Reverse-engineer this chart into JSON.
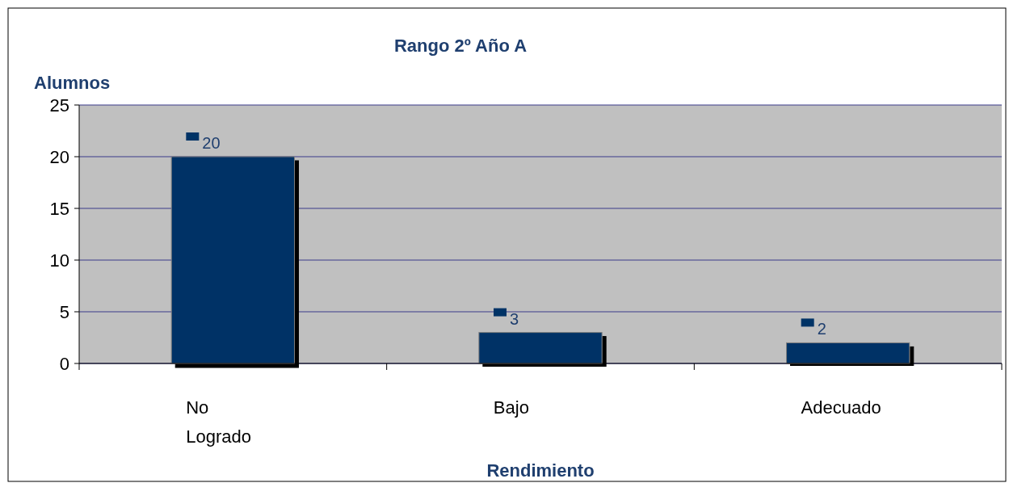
{
  "chart_data": {
    "type": "bar",
    "title": "Rango 2º Año A",
    "ylabel": "Alumnos",
    "xlabel": "Rendimiento",
    "categories": [
      "No Logrado",
      "Bajo",
      "Adecuado"
    ],
    "values": [
      20,
      3,
      2
    ],
    "color": "#003366",
    "value_labels": [
      "20",
      "3",
      "2"
    ],
    "ylim": [
      0,
      25
    ],
    "yticks": [
      0,
      5,
      10,
      15,
      20,
      25
    ],
    "grid": "y"
  }
}
